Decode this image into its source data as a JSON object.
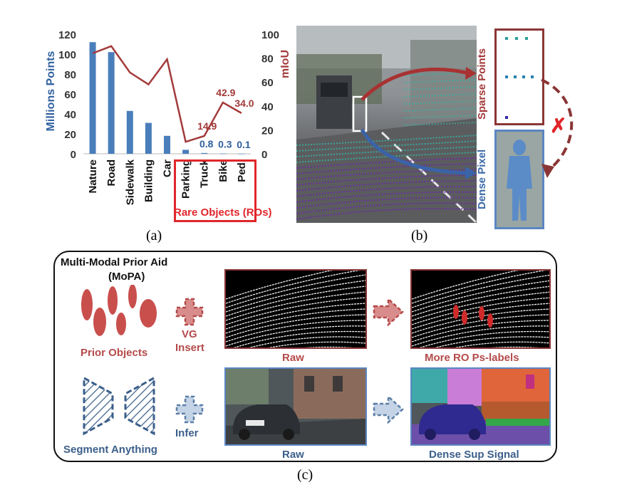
{
  "panel_a": {
    "caption": "(a)",
    "rare_label": "Rare Objects (ROs)",
    "colors": {
      "bar": "#4a7ebb",
      "line": "#a33a3a",
      "rare_box": "#e0262b",
      "ylabel_left": "#2e5f9e",
      "ylabel_right": "#a33a3a"
    }
  },
  "chart_data": {
    "type": "bar",
    "categories": [
      "Nature",
      "Road",
      "Sidewalk",
      "Building",
      "Car",
      "Parking",
      "Truck",
      "Bike",
      "Ped."
    ],
    "ylabel": "Millions Points",
    "y2label": "mIoU",
    "ylim": [
      0,
      120
    ],
    "y2lim": [
      0,
      100
    ],
    "yticks": [
      0,
      20,
      40,
      60,
      80,
      100,
      120
    ],
    "y2ticks": [
      0,
      20,
      40,
      60,
      80,
      100
    ],
    "series": [
      {
        "name": "Millions Points",
        "type": "bar",
        "axis": "left",
        "values": [
          112,
          102,
          43,
          31,
          18,
          4,
          0.8,
          0.3,
          0.1
        ],
        "labels": [
          "",
          "",
          "",
          "",
          "",
          "",
          "0.8",
          "0.3",
          "0.1"
        ]
      },
      {
        "name": "mIoU",
        "type": "line",
        "axis": "right",
        "values": [
          84,
          90,
          68,
          58,
          79,
          10,
          14.9,
          42.9,
          34.0
        ],
        "labels": [
          "",
          "",
          "",
          "",
          "",
          "",
          "14.9",
          "42.9",
          "34.0"
        ]
      }
    ],
    "grid": false,
    "legend": "none"
  },
  "panel_b": {
    "caption": "(b)",
    "sparse_label": "Sparse Points",
    "dense_label": "Dense Pixel",
    "cross": "✗"
  },
  "panel_c": {
    "caption": "(c)",
    "title_line1": "Multi-Modal Prior Aid",
    "title_line2": "(MoPA)",
    "prior_objects": "Prior Objects",
    "vg_insert_1": "VG",
    "vg_insert_2": "Insert",
    "raw_top": "Raw",
    "more_ro": "More RO Ps-labels",
    "segment_anything": "Segment Anything",
    "infer": "Infer",
    "raw_bottom": "Raw",
    "dense_sup": "Dense Sup Signal",
    "colors": {
      "red": "#b54a4a",
      "blue": "#3b5f8a"
    }
  }
}
